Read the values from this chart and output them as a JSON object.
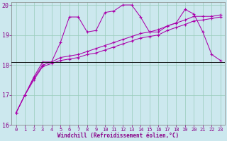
{
  "xlabel": "Windchill (Refroidissement éolien,°C)",
  "background_color": "#cce8ee",
  "grid_color": "#99ccbb",
  "line_color": "#aa00aa",
  "text_color": "#880088",
  "hline_y": 18.1,
  "xlim": [
    -0.5,
    23.5
  ],
  "ylim": [
    16,
    20.1
  ],
  "yticks": [
    16,
    17,
    18,
    19,
    20
  ],
  "xticks": [
    0,
    1,
    2,
    3,
    4,
    5,
    6,
    7,
    8,
    9,
    10,
    11,
    12,
    13,
    14,
    15,
    16,
    17,
    18,
    19,
    20,
    21,
    22,
    23
  ],
  "line1": [
    16.4,
    17.0,
    17.6,
    18.1,
    18.1,
    18.75,
    19.6,
    19.6,
    19.1,
    19.15,
    19.75,
    19.8,
    20.0,
    20.0,
    19.6,
    19.1,
    19.1,
    19.3,
    19.4,
    19.85,
    19.7,
    19.1,
    18.35,
    18.15
  ],
  "line2": [
    16.4,
    17.0,
    17.55,
    18.0,
    18.1,
    18.25,
    18.3,
    18.35,
    18.45,
    18.55,
    18.65,
    18.75,
    18.85,
    18.95,
    19.05,
    19.1,
    19.18,
    19.3,
    19.4,
    19.5,
    19.62,
    19.62,
    19.62,
    19.67
  ],
  "line3": [
    16.4,
    17.0,
    17.5,
    17.95,
    18.05,
    18.15,
    18.2,
    18.25,
    18.35,
    18.4,
    18.5,
    18.6,
    18.7,
    18.8,
    18.9,
    18.95,
    19.0,
    19.15,
    19.25,
    19.35,
    19.47,
    19.5,
    19.55,
    19.6
  ]
}
